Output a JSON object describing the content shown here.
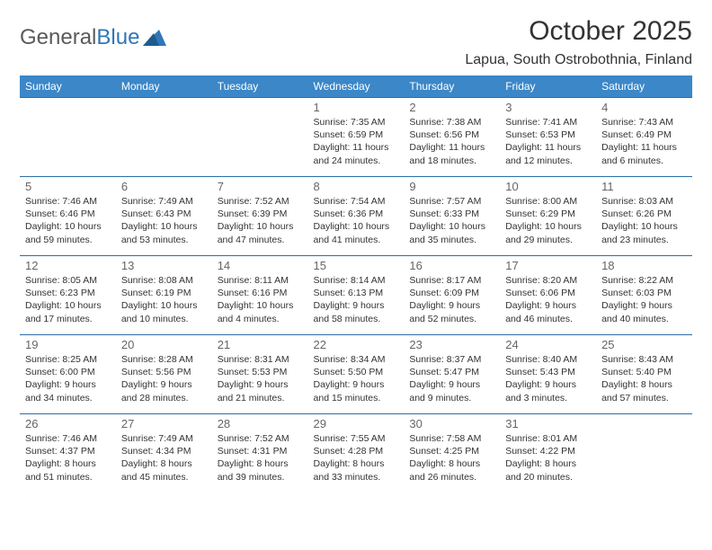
{
  "logo": {
    "word1": "General",
    "word2": "Blue"
  },
  "title": "October 2025",
  "location": "Lapua, South Ostrobothnia, Finland",
  "colors": {
    "header_bg": "#3b87c8",
    "header_text": "#ffffff",
    "row_border": "#2f6ea5",
    "logo_gray": "#5a5a5a",
    "logo_blue": "#2f77b8",
    "body_text": "#333333",
    "daynum": "#666666",
    "page_bg": "#ffffff"
  },
  "typography": {
    "title_fontsize": 30,
    "location_fontsize": 16,
    "weekday_fontsize": 12,
    "daynum_fontsize": 13,
    "cell_fontsize": 10.5,
    "font_family": "Arial"
  },
  "weekdays": [
    "Sunday",
    "Monday",
    "Tuesday",
    "Wednesday",
    "Thursday",
    "Friday",
    "Saturday"
  ],
  "weeks": [
    [
      null,
      null,
      null,
      {
        "n": "1",
        "sr": "Sunrise: 7:35 AM",
        "ss": "Sunset: 6:59 PM",
        "d1": "Daylight: 11 hours",
        "d2": "and 24 minutes."
      },
      {
        "n": "2",
        "sr": "Sunrise: 7:38 AM",
        "ss": "Sunset: 6:56 PM",
        "d1": "Daylight: 11 hours",
        "d2": "and 18 minutes."
      },
      {
        "n": "3",
        "sr": "Sunrise: 7:41 AM",
        "ss": "Sunset: 6:53 PM",
        "d1": "Daylight: 11 hours",
        "d2": "and 12 minutes."
      },
      {
        "n": "4",
        "sr": "Sunrise: 7:43 AM",
        "ss": "Sunset: 6:49 PM",
        "d1": "Daylight: 11 hours",
        "d2": "and 6 minutes."
      }
    ],
    [
      {
        "n": "5",
        "sr": "Sunrise: 7:46 AM",
        "ss": "Sunset: 6:46 PM",
        "d1": "Daylight: 10 hours",
        "d2": "and 59 minutes."
      },
      {
        "n": "6",
        "sr": "Sunrise: 7:49 AM",
        "ss": "Sunset: 6:43 PM",
        "d1": "Daylight: 10 hours",
        "d2": "and 53 minutes."
      },
      {
        "n": "7",
        "sr": "Sunrise: 7:52 AM",
        "ss": "Sunset: 6:39 PM",
        "d1": "Daylight: 10 hours",
        "d2": "and 47 minutes."
      },
      {
        "n": "8",
        "sr": "Sunrise: 7:54 AM",
        "ss": "Sunset: 6:36 PM",
        "d1": "Daylight: 10 hours",
        "d2": "and 41 minutes."
      },
      {
        "n": "9",
        "sr": "Sunrise: 7:57 AM",
        "ss": "Sunset: 6:33 PM",
        "d1": "Daylight: 10 hours",
        "d2": "and 35 minutes."
      },
      {
        "n": "10",
        "sr": "Sunrise: 8:00 AM",
        "ss": "Sunset: 6:29 PM",
        "d1": "Daylight: 10 hours",
        "d2": "and 29 minutes."
      },
      {
        "n": "11",
        "sr": "Sunrise: 8:03 AM",
        "ss": "Sunset: 6:26 PM",
        "d1": "Daylight: 10 hours",
        "d2": "and 23 minutes."
      }
    ],
    [
      {
        "n": "12",
        "sr": "Sunrise: 8:05 AM",
        "ss": "Sunset: 6:23 PM",
        "d1": "Daylight: 10 hours",
        "d2": "and 17 minutes."
      },
      {
        "n": "13",
        "sr": "Sunrise: 8:08 AM",
        "ss": "Sunset: 6:19 PM",
        "d1": "Daylight: 10 hours",
        "d2": "and 10 minutes."
      },
      {
        "n": "14",
        "sr": "Sunrise: 8:11 AM",
        "ss": "Sunset: 6:16 PM",
        "d1": "Daylight: 10 hours",
        "d2": "and 4 minutes."
      },
      {
        "n": "15",
        "sr": "Sunrise: 8:14 AM",
        "ss": "Sunset: 6:13 PM",
        "d1": "Daylight: 9 hours",
        "d2": "and 58 minutes."
      },
      {
        "n": "16",
        "sr": "Sunrise: 8:17 AM",
        "ss": "Sunset: 6:09 PM",
        "d1": "Daylight: 9 hours",
        "d2": "and 52 minutes."
      },
      {
        "n": "17",
        "sr": "Sunrise: 8:20 AM",
        "ss": "Sunset: 6:06 PM",
        "d1": "Daylight: 9 hours",
        "d2": "and 46 minutes."
      },
      {
        "n": "18",
        "sr": "Sunrise: 8:22 AM",
        "ss": "Sunset: 6:03 PM",
        "d1": "Daylight: 9 hours",
        "d2": "and 40 minutes."
      }
    ],
    [
      {
        "n": "19",
        "sr": "Sunrise: 8:25 AM",
        "ss": "Sunset: 6:00 PM",
        "d1": "Daylight: 9 hours",
        "d2": "and 34 minutes."
      },
      {
        "n": "20",
        "sr": "Sunrise: 8:28 AM",
        "ss": "Sunset: 5:56 PM",
        "d1": "Daylight: 9 hours",
        "d2": "and 28 minutes."
      },
      {
        "n": "21",
        "sr": "Sunrise: 8:31 AM",
        "ss": "Sunset: 5:53 PM",
        "d1": "Daylight: 9 hours",
        "d2": "and 21 minutes."
      },
      {
        "n": "22",
        "sr": "Sunrise: 8:34 AM",
        "ss": "Sunset: 5:50 PM",
        "d1": "Daylight: 9 hours",
        "d2": "and 15 minutes."
      },
      {
        "n": "23",
        "sr": "Sunrise: 8:37 AM",
        "ss": "Sunset: 5:47 PM",
        "d1": "Daylight: 9 hours",
        "d2": "and 9 minutes."
      },
      {
        "n": "24",
        "sr": "Sunrise: 8:40 AM",
        "ss": "Sunset: 5:43 PM",
        "d1": "Daylight: 9 hours",
        "d2": "and 3 minutes."
      },
      {
        "n": "25",
        "sr": "Sunrise: 8:43 AM",
        "ss": "Sunset: 5:40 PM",
        "d1": "Daylight: 8 hours",
        "d2": "and 57 minutes."
      }
    ],
    [
      {
        "n": "26",
        "sr": "Sunrise: 7:46 AM",
        "ss": "Sunset: 4:37 PM",
        "d1": "Daylight: 8 hours",
        "d2": "and 51 minutes."
      },
      {
        "n": "27",
        "sr": "Sunrise: 7:49 AM",
        "ss": "Sunset: 4:34 PM",
        "d1": "Daylight: 8 hours",
        "d2": "and 45 minutes."
      },
      {
        "n": "28",
        "sr": "Sunrise: 7:52 AM",
        "ss": "Sunset: 4:31 PM",
        "d1": "Daylight: 8 hours",
        "d2": "and 39 minutes."
      },
      {
        "n": "29",
        "sr": "Sunrise: 7:55 AM",
        "ss": "Sunset: 4:28 PM",
        "d1": "Daylight: 8 hours",
        "d2": "and 33 minutes."
      },
      {
        "n": "30",
        "sr": "Sunrise: 7:58 AM",
        "ss": "Sunset: 4:25 PM",
        "d1": "Daylight: 8 hours",
        "d2": "and 26 minutes."
      },
      {
        "n": "31",
        "sr": "Sunrise: 8:01 AM",
        "ss": "Sunset: 4:22 PM",
        "d1": "Daylight: 8 hours",
        "d2": "and 20 minutes."
      },
      null
    ]
  ]
}
